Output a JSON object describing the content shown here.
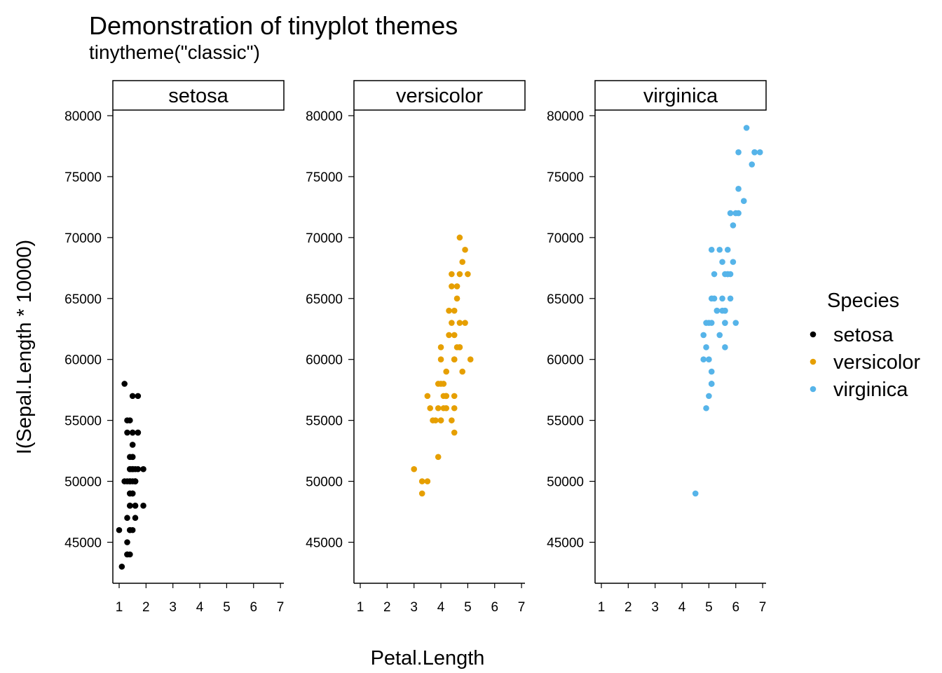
{
  "chart_data": {
    "type": "scatter",
    "title": "Demonstration of tinyplot themes",
    "subtitle": "tinytheme(\"classic\")",
    "xlabel": "Petal.Length",
    "ylabel": "I(Sepal.Length * 10000)",
    "xlim": [
      0.8,
      7.1
    ],
    "ylim": [
      41500,
      81000
    ],
    "xticks": [
      1,
      2,
      3,
      4,
      5,
      6,
      7
    ],
    "yticks": [
      45000,
      50000,
      55000,
      60000,
      65000,
      70000,
      75000,
      80000
    ],
    "legend": {
      "title": "Species",
      "placement": "right",
      "entries": [
        "setosa",
        "versicolor",
        "virginica"
      ]
    },
    "series": [
      {
        "name": "setosa",
        "color": "#000000",
        "points": [
          [
            1.4,
            51000
          ],
          [
            1.4,
            49000
          ],
          [
            1.3,
            47000
          ],
          [
            1.5,
            46000
          ],
          [
            1.4,
            50000
          ],
          [
            1.7,
            54000
          ],
          [
            1.4,
            46000
          ],
          [
            1.5,
            50000
          ],
          [
            1.4,
            44000
          ],
          [
            1.5,
            49000
          ],
          [
            1.5,
            54000
          ],
          [
            1.6,
            48000
          ],
          [
            1.4,
            48000
          ],
          [
            1.1,
            43000
          ],
          [
            1.2,
            58000
          ],
          [
            1.5,
            57000
          ],
          [
            1.3,
            54000
          ],
          [
            1.4,
            51000
          ],
          [
            1.7,
            57000
          ],
          [
            1.5,
            51000
          ],
          [
            1.7,
            54000
          ],
          [
            1.5,
            51000
          ],
          [
            1.0,
            46000
          ],
          [
            1.7,
            51000
          ],
          [
            1.9,
            48000
          ],
          [
            1.6,
            50000
          ],
          [
            1.6,
            50000
          ],
          [
            1.5,
            52000
          ],
          [
            1.4,
            52000
          ],
          [
            1.6,
            47000
          ],
          [
            1.6,
            48000
          ],
          [
            1.5,
            54000
          ],
          [
            1.5,
            52000
          ],
          [
            1.4,
            55000
          ],
          [
            1.5,
            49000
          ],
          [
            1.2,
            50000
          ],
          [
            1.3,
            55000
          ],
          [
            1.4,
            49000
          ],
          [
            1.3,
            44000
          ],
          [
            1.5,
            51000
          ],
          [
            1.3,
            50000
          ],
          [
            1.3,
            45000
          ],
          [
            1.3,
            44000
          ],
          [
            1.6,
            50000
          ],
          [
            1.9,
            51000
          ],
          [
            1.4,
            48000
          ],
          [
            1.6,
            51000
          ],
          [
            1.4,
            46000
          ],
          [
            1.5,
            53000
          ],
          [
            1.4,
            50000
          ]
        ]
      },
      {
        "name": "versicolor",
        "color": "#E69F00",
        "points": [
          [
            4.7,
            70000
          ],
          [
            4.5,
            64000
          ],
          [
            4.9,
            69000
          ],
          [
            4.0,
            55000
          ],
          [
            4.6,
            65000
          ],
          [
            4.5,
            57000
          ],
          [
            4.7,
            63000
          ],
          [
            3.3,
            49000
          ],
          [
            4.6,
            66000
          ],
          [
            3.9,
            52000
          ],
          [
            3.5,
            50000
          ],
          [
            4.2,
            59000
          ],
          [
            4.0,
            60000
          ],
          [
            4.7,
            61000
          ],
          [
            3.6,
            56000
          ],
          [
            4.4,
            67000
          ],
          [
            4.5,
            56000
          ],
          [
            4.1,
            58000
          ],
          [
            4.5,
            62000
          ],
          [
            3.9,
            56000
          ],
          [
            4.8,
            59000
          ],
          [
            4.0,
            61000
          ],
          [
            4.9,
            63000
          ],
          [
            4.7,
            61000
          ],
          [
            4.3,
            64000
          ],
          [
            4.4,
            66000
          ],
          [
            4.8,
            68000
          ],
          [
            5.0,
            67000
          ],
          [
            4.5,
            60000
          ],
          [
            3.5,
            57000
          ],
          [
            3.8,
            55000
          ],
          [
            3.7,
            55000
          ],
          [
            3.9,
            58000
          ],
          [
            5.1,
            60000
          ],
          [
            4.5,
            54000
          ],
          [
            4.5,
            60000
          ],
          [
            4.7,
            67000
          ],
          [
            4.4,
            63000
          ],
          [
            4.1,
            56000
          ],
          [
            4.0,
            55000
          ],
          [
            4.4,
            55000
          ],
          [
            4.6,
            61000
          ],
          [
            4.0,
            58000
          ],
          [
            3.3,
            50000
          ],
          [
            4.2,
            56000
          ],
          [
            4.2,
            57000
          ],
          [
            4.2,
            57000
          ],
          [
            4.3,
            62000
          ],
          [
            3.0,
            51000
          ],
          [
            4.1,
            57000
          ]
        ]
      },
      {
        "name": "virginica",
        "color": "#56B4E9",
        "points": [
          [
            6.0,
            63000
          ],
          [
            5.1,
            58000
          ],
          [
            5.9,
            71000
          ],
          [
            5.6,
            63000
          ],
          [
            5.8,
            65000
          ],
          [
            6.6,
            76000
          ],
          [
            4.5,
            49000
          ],
          [
            6.3,
            73000
          ],
          [
            5.8,
            67000
          ],
          [
            6.1,
            72000
          ],
          [
            5.1,
            65000
          ],
          [
            5.3,
            64000
          ],
          [
            5.5,
            68000
          ],
          [
            5.0,
            57000
          ],
          [
            5.1,
            58000
          ],
          [
            5.3,
            64000
          ],
          [
            5.5,
            65000
          ],
          [
            6.7,
            77000
          ],
          [
            6.9,
            77000
          ],
          [
            5.0,
            60000
          ],
          [
            5.7,
            69000
          ],
          [
            4.9,
            56000
          ],
          [
            6.7,
            77000
          ],
          [
            4.9,
            63000
          ],
          [
            5.7,
            67000
          ],
          [
            6.0,
            72000
          ],
          [
            4.8,
            62000
          ],
          [
            4.9,
            61000
          ],
          [
            5.6,
            64000
          ],
          [
            5.8,
            72000
          ],
          [
            6.1,
            74000
          ],
          [
            6.4,
            79000
          ],
          [
            5.6,
            64000
          ],
          [
            5.1,
            63000
          ],
          [
            5.6,
            61000
          ],
          [
            6.1,
            77000
          ],
          [
            5.6,
            63000
          ],
          [
            5.5,
            64000
          ],
          [
            4.8,
            60000
          ],
          [
            5.4,
            69000
          ],
          [
            5.6,
            67000
          ],
          [
            5.1,
            69000
          ],
          [
            5.1,
            58000
          ],
          [
            5.9,
            68000
          ],
          [
            5.7,
            67000
          ],
          [
            5.2,
            67000
          ],
          [
            5.0,
            63000
          ],
          [
            5.2,
            65000
          ],
          [
            5.4,
            62000
          ],
          [
            5.1,
            59000
          ]
        ]
      }
    ]
  }
}
